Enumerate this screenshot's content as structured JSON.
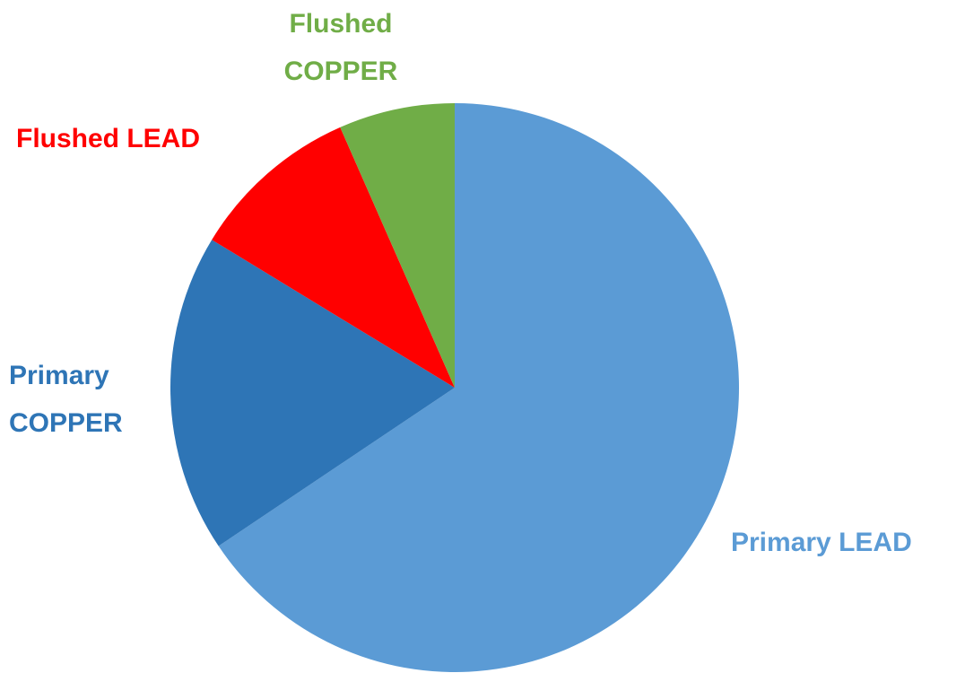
{
  "chart_data": {
    "type": "pie",
    "categories": [
      "Primary LEAD",
      "Primary COPPER",
      "Flushed LEAD",
      "Flushed COPPER"
    ],
    "values": [
      65.6,
      18.1,
      9.7,
      6.6
    ],
    "colors": [
      "#5b9bd5",
      "#2e75b6",
      "#ff0000",
      "#70ad47"
    ]
  }
}
